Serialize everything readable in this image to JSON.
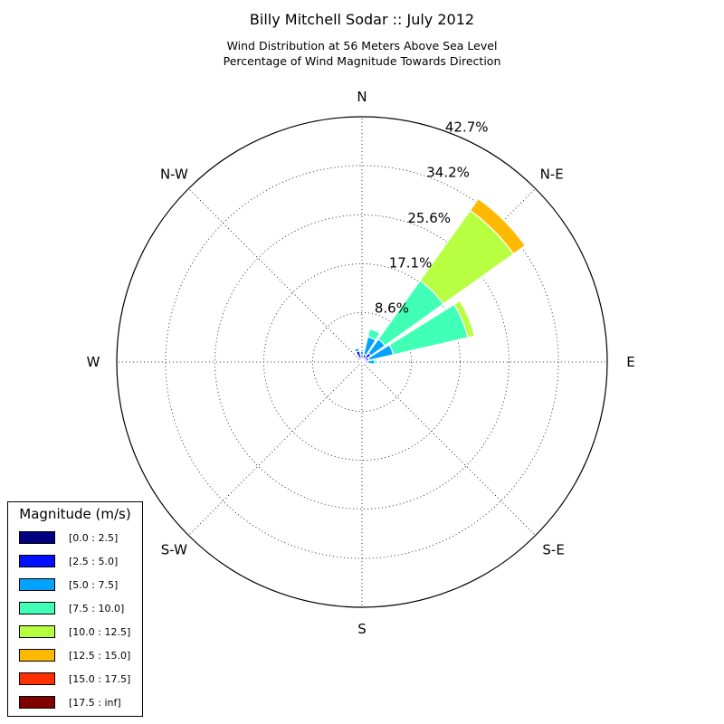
{
  "header": {
    "title": "Billy Mitchell Sodar :: July 2012",
    "subtitle_lines": [
      "Wind Distribution at 56 Meters Above Sea Level",
      "Percentage of Wind Magnitude Towards Direction"
    ]
  },
  "chart_data": {
    "type": "polar-bar",
    "title": "Billy Mitchell Sodar :: July 2012",
    "directions": [
      "N",
      "N-E",
      "E",
      "S-E",
      "S",
      "S-W",
      "W",
      "N-W"
    ],
    "radial_ticks": [
      "8.6%",
      "17.1%",
      "25.6%",
      "34.2%",
      "42.7%"
    ],
    "radial_tick_values": [
      8.6,
      17.1,
      25.6,
      34.2,
      42.7
    ],
    "radial_max": 42.7,
    "grid": true,
    "legend": {
      "title": "Magnitude (m/s)",
      "placement": "lower-left",
      "entries": [
        {
          "label": "[0.0 : 2.5]",
          "color": "#000080"
        },
        {
          "label": "[2.5 : 5.0]",
          "color": "#0010ff"
        },
        {
          "label": "[5.0 : 7.5]",
          "color": "#00a4ff"
        },
        {
          "label": "[7.5 : 10.0]",
          "color": "#40ffb7"
        },
        {
          "label": "[10.0 : 12.5]",
          "color": "#b7ff40"
        },
        {
          "label": "[12.5 : 15.0]",
          "color": "#ffb900"
        },
        {
          "label": "[15.0 : 17.5]",
          "color": "#ff3000"
        },
        {
          "label": "[17.5 : inf]",
          "color": "#800000"
        }
      ]
    },
    "sectors": [
      {
        "direction_deg": 0,
        "values": [
          0.3,
          1.0,
          0.5,
          0.0,
          0.0,
          0.0,
          0.0,
          0.0
        ]
      },
      {
        "direction_deg": 22.5,
        "values": [
          0.4,
          1.0,
          3.1,
          1.4,
          0.0,
          0.0,
          0.0,
          0.0
        ]
      },
      {
        "direction_deg": 45,
        "values": [
          0.5,
          1.4,
          3.0,
          12.5,
          15.0,
          2.5,
          0.0,
          0.0
        ]
      },
      {
        "direction_deg": 67.5,
        "values": [
          0.5,
          0.8,
          4.3,
          13.3,
          1.2,
          0.0,
          0.0,
          0.0
        ]
      },
      {
        "direction_deg": 90,
        "values": [
          0.4,
          0.6,
          1.2,
          0.4,
          0.0,
          0.0,
          0.0,
          0.0
        ]
      },
      {
        "direction_deg": 112.5,
        "values": [
          0.3,
          0.2,
          0.1,
          0.0,
          0.0,
          0.0,
          0.0,
          0.0
        ]
      },
      {
        "direction_deg": 337.5,
        "values": [
          0.3,
          1.7,
          0.5,
          0.0,
          0.0,
          0.0,
          0.0,
          0.0
        ]
      }
    ]
  }
}
